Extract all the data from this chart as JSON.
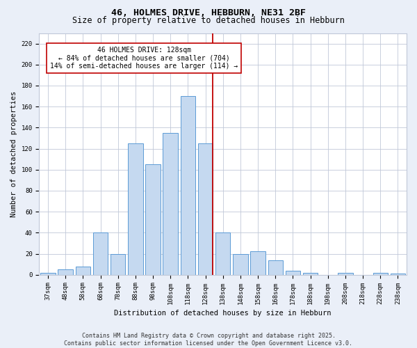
{
  "title_line1": "46, HOLMES DRIVE, HEBBURN, NE31 2BF",
  "title_line2": "Size of property relative to detached houses in Hebburn",
  "xlabel": "Distribution of detached houses by size in Hebburn",
  "ylabel": "Number of detached properties",
  "categories": [
    "37sqm",
    "48sqm",
    "58sqm",
    "68sqm",
    "78sqm",
    "88sqm",
    "98sqm",
    "108sqm",
    "118sqm",
    "128sqm",
    "138sqm",
    "148sqm",
    "158sqm",
    "168sqm",
    "178sqm",
    "188sqm",
    "198sqm",
    "208sqm",
    "218sqm",
    "228sqm",
    "238sqm"
  ],
  "values": [
    2,
    5,
    8,
    40,
    20,
    125,
    105,
    135,
    170,
    125,
    40,
    20,
    22,
    14,
    4,
    2,
    0,
    2,
    0,
    2,
    1
  ],
  "bar_color": "#c5d9f0",
  "bar_edge_color": "#5b9bd5",
  "vline_color": "#c00000",
  "annotation_text": "46 HOLMES DRIVE: 128sqm\n← 84% of detached houses are smaller (704)\n14% of semi-detached houses are larger (114) →",
  "annotation_box_color": "#ffffff",
  "annotation_box_edge_color": "#c00000",
  "ylim": [
    0,
    230
  ],
  "yticks": [
    0,
    20,
    40,
    60,
    80,
    100,
    120,
    140,
    160,
    180,
    200,
    220
  ],
  "bg_color": "#eaeff8",
  "plot_bg_color": "#ffffff",
  "grid_color": "#c0c8d8",
  "footnote": "Contains HM Land Registry data © Crown copyright and database right 2025.\nContains public sector information licensed under the Open Government Licence v3.0.",
  "title_fontsize": 9.5,
  "subtitle_fontsize": 8.5,
  "axis_label_fontsize": 7.5,
  "tick_fontsize": 6.5,
  "annotation_fontsize": 7.0,
  "footnote_fontsize": 6.0
}
